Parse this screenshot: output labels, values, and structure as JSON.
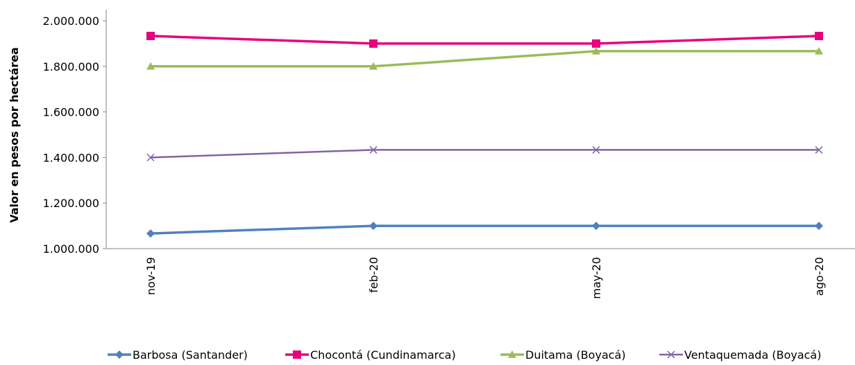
{
  "chart_data": {
    "type": "line",
    "title": "",
    "xlabel": "",
    "ylabel": "Valor en pesos por hectárea",
    "categories": [
      "nov-19",
      "feb-20",
      "may-20",
      "ago-20"
    ],
    "ylim": [
      1000000,
      2000000
    ],
    "yticks": [
      1000000,
      1200000,
      1400000,
      1600000,
      1800000,
      2000000
    ],
    "ytick_labels": [
      "1.000.000",
      "1.200.000",
      "1.400.000",
      "1.600.000",
      "1.800.000",
      "2.000.000"
    ],
    "grid": false,
    "legend_position": "bottom",
    "series": [
      {
        "name": "Barbosa (Santander)",
        "values": [
          1066667,
          1100000,
          1100000,
          1100000
        ],
        "color": "#4F81BD",
        "marker": "diamond"
      },
      {
        "name": "Chocontá (Cundinamarca)",
        "values": [
          1933333,
          1900000,
          1900000,
          1933333
        ],
        "color": "#E6007E",
        "marker": "square"
      },
      {
        "name": "Duitama (Boyacá)",
        "values": [
          1800000,
          1800000,
          1866667,
          1866667
        ],
        "color": "#9BBB59",
        "marker": "triangle"
      },
      {
        "name": "Ventaquemada (Boyacá)",
        "values": [
          1400000,
          1433333,
          1433333,
          1433333
        ],
        "color": "#8064A2",
        "marker": "x"
      }
    ]
  }
}
